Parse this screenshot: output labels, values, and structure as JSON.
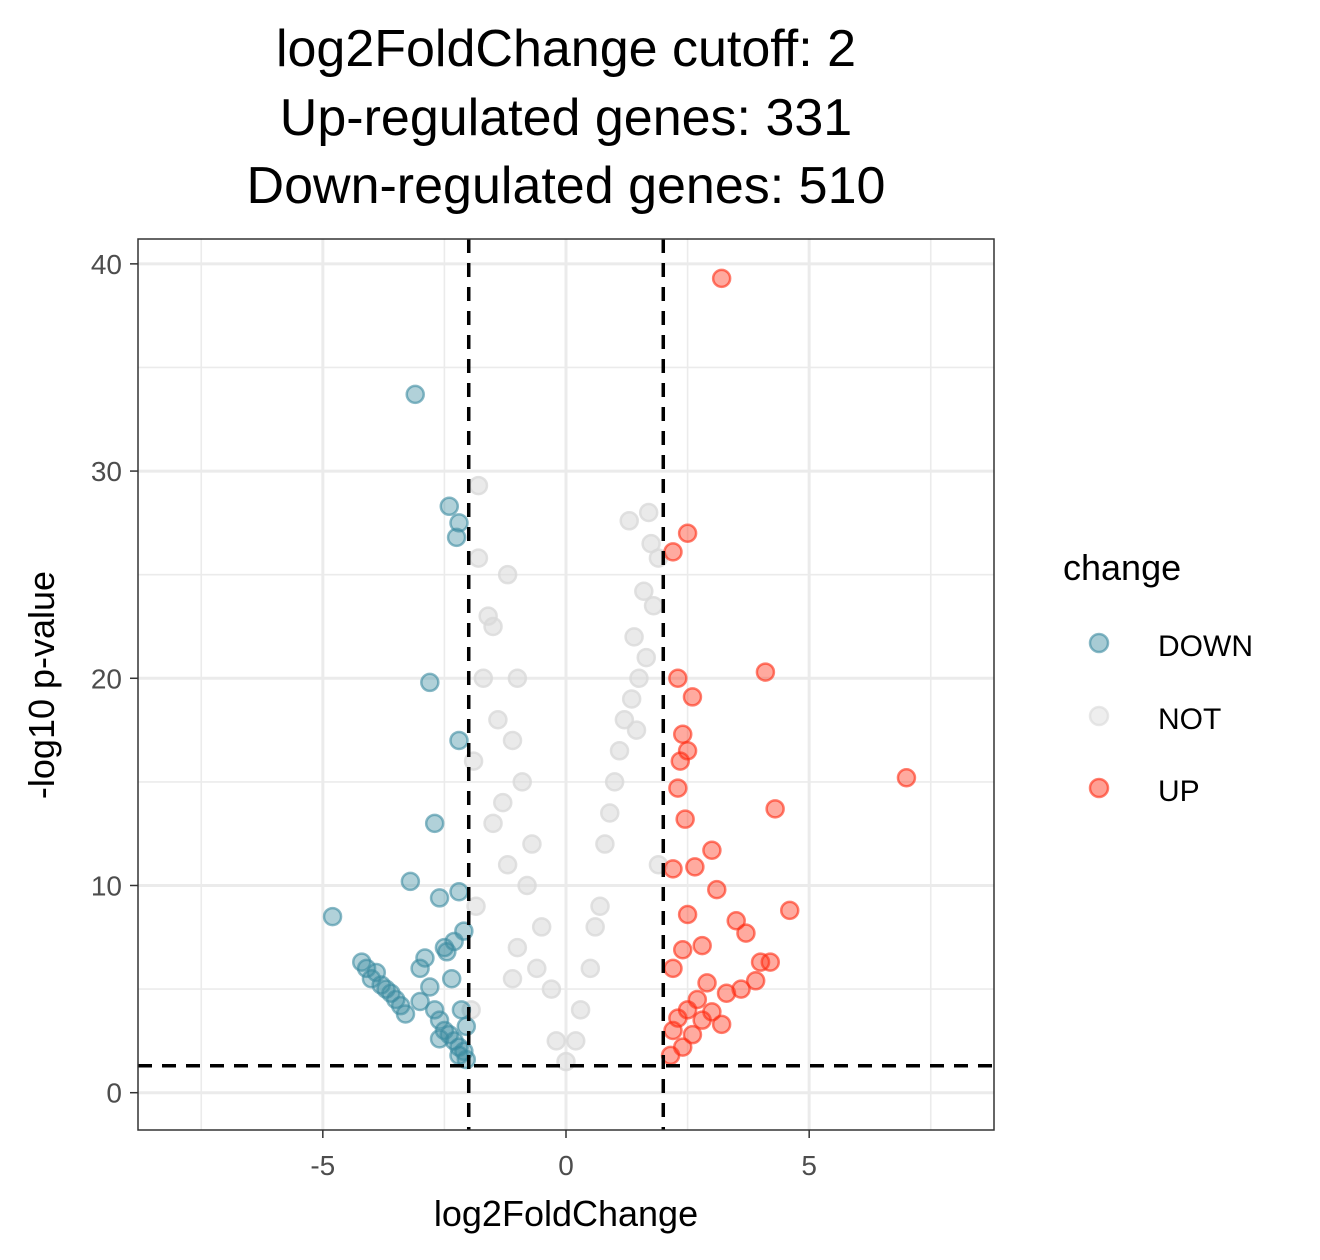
{
  "chart_data": {
    "type": "scatter",
    "title_lines": [
      "log2FoldChange cutoff: 2",
      "Up-regulated genes: 331",
      "Down-regulated genes: 510"
    ],
    "xlabel": "log2FoldChange",
    "ylabel": "-log10 p-value",
    "xlim": [
      -8.8,
      8.8
    ],
    "ylim": [
      -1.8,
      41.2
    ],
    "x_ticks": [
      -5,
      0,
      5
    ],
    "x_tick_labels": [
      "-5",
      "0",
      "5"
    ],
    "y_ticks": [
      0,
      10,
      20,
      30,
      40
    ],
    "y_tick_labels": [
      "0",
      "10",
      "20",
      "30",
      "40"
    ],
    "grid": true,
    "cutoff_lines": {
      "x": [
        -2,
        2
      ],
      "y": 1.3
    },
    "legend": {
      "title": "change",
      "placement": "right",
      "entries": [
        {
          "label": "DOWN",
          "color": "#3b8ba0"
        },
        {
          "label": "NOT",
          "color": "#d9d9d9"
        },
        {
          "label": "UP",
          "color": "#ff2a10"
        }
      ]
    },
    "series": [
      {
        "name": "DOWN",
        "color": "#3b8ba0",
        "x": [
          -3.1,
          -2.4,
          -2.2,
          -2.25,
          -2.8,
          -2.2,
          -2.7,
          -4.8,
          -3.2,
          -2.6,
          -2.2,
          -2.1,
          -2.5,
          -2.3,
          -2.9,
          -3.0,
          -3.5,
          -4.0,
          -4.2,
          -4.1,
          -3.8,
          -3.6,
          -3.4,
          -3.3,
          -2.7,
          -2.6,
          -2.5,
          -2.4,
          -2.3,
          -2.2,
          -2.1,
          -2.05,
          -3.9,
          -3.7,
          -3.0,
          -2.8,
          -2.45,
          -2.35,
          -2.15,
          -2.05,
          -2.6,
          -2.2
        ],
        "y": [
          33.7,
          28.3,
          27.5,
          26.8,
          19.8,
          17.0,
          13.0,
          8.5,
          10.2,
          9.4,
          9.7,
          7.8,
          7.0,
          7.3,
          6.5,
          6.0,
          4.5,
          5.5,
          6.3,
          6.0,
          5.2,
          4.8,
          4.2,
          3.8,
          4.0,
          3.5,
          3.0,
          2.8,
          2.5,
          2.2,
          2.0,
          1.6,
          5.8,
          5.0,
          4.4,
          5.1,
          6.8,
          5.5,
          4.0,
          3.2,
          2.6,
          1.8
        ]
      },
      {
        "name": "NOT",
        "color": "#d9d9d9",
        "x": [
          -1.8,
          -1.8,
          -1.2,
          -1.0,
          -1.5,
          -1.4,
          -1.1,
          -0.9,
          -0.7,
          -1.3,
          -1.6,
          -1.9,
          -0.5,
          -0.3,
          -0.8,
          -1.7,
          -1.2,
          -1.0,
          -0.6,
          -1.5,
          -1.85,
          -1.95,
          1.3,
          1.7,
          1.9,
          1.6,
          1.4,
          1.5,
          1.2,
          1.0,
          0.8,
          0.9,
          0.7,
          1.1,
          1.8,
          0.5,
          0.3,
          1.65,
          1.35,
          1.75,
          0.6,
          1.9,
          -0.2,
          0.2,
          0.0,
          -1.1,
          1.45
        ],
        "y": [
          29.3,
          25.8,
          25.0,
          20.0,
          22.5,
          18.0,
          17.0,
          15.0,
          12.0,
          14.0,
          23.0,
          16.0,
          8.0,
          5.0,
          10.0,
          20.0,
          11.0,
          7.0,
          6.0,
          13.0,
          9.0,
          4.0,
          27.6,
          28.0,
          25.8,
          24.2,
          22.0,
          20.0,
          18.0,
          15.0,
          12.0,
          13.5,
          9.0,
          16.5,
          23.5,
          6.0,
          4.0,
          21.0,
          19.0,
          26.5,
          8.0,
          11.0,
          2.5,
          2.5,
          1.5,
          5.5,
          17.5
        ]
      },
      {
        "name": "UP",
        "color": "#ff2a10",
        "x": [
          3.2,
          2.5,
          2.2,
          4.1,
          7.0,
          2.3,
          2.6,
          2.4,
          2.5,
          2.35,
          2.3,
          4.3,
          2.45,
          3.0,
          2.2,
          2.65,
          3.1,
          4.6,
          2.5,
          3.5,
          3.7,
          2.8,
          2.4,
          2.2,
          4.0,
          4.2,
          3.6,
          3.9,
          3.3,
          2.9,
          2.7,
          2.5,
          2.3,
          2.2,
          3.0,
          2.8,
          2.6,
          3.2,
          2.4,
          2.15
        ],
        "y": [
          39.3,
          27.0,
          26.1,
          20.3,
          15.2,
          20.0,
          19.1,
          17.3,
          16.5,
          16.0,
          14.7,
          13.7,
          13.2,
          11.7,
          10.8,
          10.9,
          9.8,
          8.8,
          8.6,
          8.3,
          7.7,
          7.1,
          6.9,
          6.0,
          6.3,
          6.3,
          5.0,
          5.4,
          4.8,
          5.3,
          4.5,
          4.0,
          3.6,
          3.0,
          3.9,
          3.5,
          2.8,
          3.3,
          2.2,
          1.8
        ]
      }
    ]
  }
}
